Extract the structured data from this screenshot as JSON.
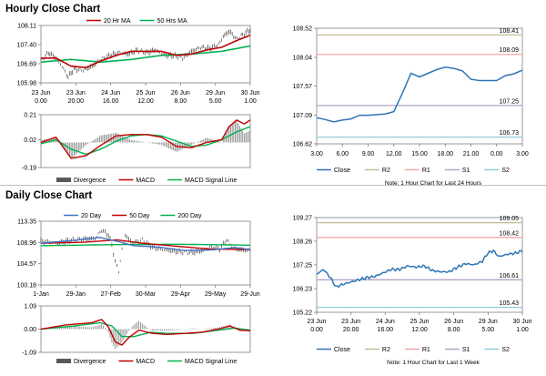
{
  "hourly_title": "Hourly Close Chart",
  "daily_title": "Daily Close Chart",
  "colors": {
    "close": "#2e75b6",
    "ma_short": "#c00000",
    "ma_long": "#00b050",
    "r2": "#c4bd97",
    "r1": "#f4a6a6",
    "s1": "#b3a2c7",
    "s2": "#92cddc",
    "divergence": "#808080",
    "macd_signal": "#00b050",
    "ma_mid": "#4472c4"
  },
  "chart_data": [
    {
      "id": "hourly_price",
      "type": "line",
      "title": "Hourly Close Chart",
      "legend": [
        "20 Hr MA",
        "50 Hrs MA"
      ],
      "legend_placement": "top",
      "ylim": [
        105.98,
        108.11
      ],
      "yticks": [
        "108.11",
        "107.40",
        "106.69",
        "105.98"
      ],
      "ytick_values": [
        108.11,
        107.4,
        106.69,
        105.98
      ],
      "xtick_top": [
        "23 Jun",
        "23 Jun",
        "24 Jun",
        "25 Jun",
        "26 Jun",
        "29 Jun",
        "30 Jun"
      ],
      "xtick_bottom": [
        "0.00",
        "20.00",
        "16.00",
        "12.00",
        "8.00",
        "5.00",
        "1.00"
      ],
      "n_points": 140,
      "close_anchors": [
        [
          0,
          106.8
        ],
        [
          5,
          107.1
        ],
        [
          10,
          106.9
        ],
        [
          14,
          106.6
        ],
        [
          18,
          106.2
        ],
        [
          22,
          106.5
        ],
        [
          28,
          106.45
        ],
        [
          34,
          106.6
        ],
        [
          40,
          106.85
        ],
        [
          46,
          107.0
        ],
        [
          52,
          107.1
        ],
        [
          58,
          107.05
        ],
        [
          64,
          107.2
        ],
        [
          70,
          107.1
        ],
        [
          76,
          107.2
        ],
        [
          82,
          107.0
        ],
        [
          88,
          107.0
        ],
        [
          94,
          106.9
        ],
        [
          100,
          107.15
        ],
        [
          106,
          107.3
        ],
        [
          112,
          107.25
        ],
        [
          118,
          107.4
        ],
        [
          121,
          107.7
        ],
        [
          125,
          107.9
        ],
        [
          130,
          107.6
        ],
        [
          135,
          107.8
        ],
        [
          139,
          107.95
        ]
      ],
      "series": [
        {
          "name": "20 Hr MA",
          "anchors": [
            [
              0,
              106.9
            ],
            [
              10,
              106.9
            ],
            [
              20,
              106.6
            ],
            [
              30,
              106.55
            ],
            [
              40,
              106.8
            ],
            [
              50,
              107.0
            ],
            [
              60,
              107.15
            ],
            [
              70,
              107.15
            ],
            [
              80,
              107.15
            ],
            [
              90,
              107.0
            ],
            [
              100,
              107.05
            ],
            [
              110,
              107.2
            ],
            [
              120,
              107.3
            ],
            [
              130,
              107.55
            ],
            [
              139,
              107.75
            ]
          ]
        },
        {
          "name": "50 Hrs MA",
          "anchors": [
            [
              0,
              106.75
            ],
            [
              20,
              106.85
            ],
            [
              40,
              106.75
            ],
            [
              60,
              106.85
            ],
            [
              80,
              107.0
            ],
            [
              100,
              107.05
            ],
            [
              120,
              107.15
            ],
            [
              139,
              107.35
            ]
          ]
        }
      ]
    },
    {
      "id": "hourly_macd",
      "type": "line",
      "legend": [
        "Divergence",
        "MACD",
        "MACD Signal Line"
      ],
      "ylim": [
        -0.19,
        0.21
      ],
      "yticks": [
        "0.21",
        "0.02",
        "-0.19"
      ],
      "ytick_values": [
        0.21,
        0.02,
        -0.19
      ],
      "zero": 0.0,
      "n_points": 140,
      "series": [
        {
          "name": "MACD",
          "anchors": [
            [
              0,
              0.0
            ],
            [
              10,
              0.04
            ],
            [
              20,
              -0.12
            ],
            [
              30,
              -0.1
            ],
            [
              40,
              -0.02
            ],
            [
              50,
              0.05
            ],
            [
              60,
              0.06
            ],
            [
              70,
              0.06
            ],
            [
              80,
              0.04
            ],
            [
              90,
              -0.03
            ],
            [
              100,
              -0.04
            ],
            [
              110,
              0.0
            ],
            [
              120,
              0.02
            ],
            [
              125,
              0.12
            ],
            [
              130,
              0.17
            ],
            [
              135,
              0.14
            ],
            [
              139,
              0.17
            ]
          ]
        },
        {
          "name": "MACD Signal Line",
          "anchors": [
            [
              0,
              -0.01
            ],
            [
              10,
              0.02
            ],
            [
              20,
              -0.05
            ],
            [
              30,
              -0.09
            ],
            [
              40,
              -0.05
            ],
            [
              50,
              0.01
            ],
            [
              60,
              0.05
            ],
            [
              70,
              0.06
            ],
            [
              80,
              0.05
            ],
            [
              90,
              0.01
            ],
            [
              100,
              -0.03
            ],
            [
              110,
              -0.02
            ],
            [
              120,
              0.02
            ],
            [
              130,
              0.08
            ],
            [
              139,
              0.12
            ]
          ]
        }
      ]
    },
    {
      "id": "hourly_right",
      "type": "line",
      "legend": [
        "Close",
        "R2",
        "R1",
        "S1",
        "S2"
      ],
      "note": "Note: 1 Hour Chart for Last 24 Hours",
      "ylim": [
        106.62,
        108.52
      ],
      "yticks": [
        "108.52",
        "108.04",
        "107.57",
        "107.09",
        "106.62"
      ],
      "ytick_values": [
        108.52,
        108.04,
        107.57,
        107.09,
        106.62
      ],
      "xticks": [
        "3.00",
        "6.00",
        "9.00",
        "12.00",
        "15.00",
        "18.00",
        "21.00",
        "0.00",
        "3.00"
      ],
      "x_points": 25,
      "close": [
        107.05,
        107.02,
        106.98,
        107.01,
        107.03,
        107.09,
        107.09,
        107.1,
        107.11,
        107.15,
        107.45,
        107.78,
        107.72,
        107.78,
        107.84,
        107.88,
        107.86,
        107.82,
        107.68,
        107.66,
        107.66,
        107.66,
        107.74,
        107.77,
        107.83
      ],
      "levels": [
        {
          "name": "R2",
          "value": 108.41,
          "label": "108.41"
        },
        {
          "name": "R1",
          "value": 108.09,
          "label": "108.09"
        },
        {
          "name": "S1",
          "value": 107.25,
          "label": "107.25"
        },
        {
          "name": "S2",
          "value": 106.73,
          "label": "106.73"
        }
      ]
    },
    {
      "id": "daily_price",
      "type": "line",
      "title": "Daily Close Chart",
      "legend": [
        "20 Day",
        "50 Day",
        "200 Day"
      ],
      "legend_placement": "top",
      "ylim": [
        100.18,
        113.35
      ],
      "yticks": [
        "113.35",
        "108.96",
        "104.57",
        "100.18"
      ],
      "ytick_values": [
        113.35,
        108.96,
        104.57,
        100.18
      ],
      "xticks": [
        "1-Jan",
        "29-Jan",
        "27-Feb",
        "30-Mar",
        "29-Apr",
        "29-May",
        "29-Jun"
      ],
      "n_points": 125,
      "close_anchors": [
        [
          0,
          109.2
        ],
        [
          10,
          108.9
        ],
        [
          18,
          109.5
        ],
        [
          26,
          109.7
        ],
        [
          32,
          109.8
        ],
        [
          36,
          111.5
        ],
        [
          40,
          110.5
        ],
        [
          42,
          108.5
        ],
        [
          44,
          105.0
        ],
        [
          46,
          103.0
        ],
        [
          48,
          107.5
        ],
        [
          50,
          110.5
        ],
        [
          54,
          108.8
        ],
        [
          60,
          109.5
        ],
        [
          66,
          108.0
        ],
        [
          72,
          107.5
        ],
        [
          78,
          107.2
        ],
        [
          84,
          107.0
        ],
        [
          90,
          106.9
        ],
        [
          96,
          107.3
        ],
        [
          100,
          108.0
        ],
        [
          106,
          107.7
        ],
        [
          110,
          109.5
        ],
        [
          114,
          107.7
        ],
        [
          120,
          107.4
        ],
        [
          124,
          107.3
        ]
      ],
      "series": [
        {
          "name": "20 Day",
          "anchors": [
            [
              0,
              108.8
            ],
            [
              20,
              109.4
            ],
            [
              35,
              110.0
            ],
            [
              45,
              109.2
            ],
            [
              55,
              108.3
            ],
            [
              70,
              108.0
            ],
            [
              85,
              107.3
            ],
            [
              100,
              107.4
            ],
            [
              115,
              107.9
            ],
            [
              124,
              107.5
            ]
          ]
        },
        {
          "name": "50 Day",
          "anchors": [
            [
              0,
              108.8
            ],
            [
              25,
              109.0
            ],
            [
              45,
              109.5
            ],
            [
              60,
              108.8
            ],
            [
              80,
              108.2
            ],
            [
              100,
              107.6
            ],
            [
              124,
              107.5
            ]
          ]
        },
        {
          "name": "200 Day",
          "anchors": [
            [
              0,
              108.3
            ],
            [
              40,
              108.5
            ],
            [
              80,
              108.6
            ],
            [
              124,
              108.4
            ]
          ]
        }
      ]
    },
    {
      "id": "daily_macd",
      "type": "line",
      "legend": [
        "Divergence",
        "MACD",
        "MACD Signal Line"
      ],
      "ylim": [
        -1.09,
        1.09
      ],
      "yticks": [
        "1.09",
        "0.00",
        "-1.09"
      ],
      "ytick_values": [
        1.09,
        0.0,
        -1.09
      ],
      "zero": 0.0,
      "n_points": 125,
      "series": [
        {
          "name": "MACD",
          "anchors": [
            [
              0,
              0.0
            ],
            [
              15,
              0.2
            ],
            [
              30,
              0.3
            ],
            [
              36,
              0.45
            ],
            [
              40,
              0.1
            ],
            [
              44,
              -0.6
            ],
            [
              48,
              -0.75
            ],
            [
              52,
              -0.4
            ],
            [
              58,
              -0.05
            ],
            [
              66,
              -0.2
            ],
            [
              75,
              -0.25
            ],
            [
              85,
              -0.2
            ],
            [
              95,
              -0.15
            ],
            [
              105,
              0.0
            ],
            [
              112,
              0.15
            ],
            [
              118,
              -0.05
            ],
            [
              124,
              -0.08
            ]
          ]
        },
        {
          "name": "MACD Signal Line",
          "anchors": [
            [
              0,
              0.0
            ],
            [
              20,
              0.15
            ],
            [
              35,
              0.3
            ],
            [
              42,
              0.15
            ],
            [
              48,
              -0.35
            ],
            [
              55,
              -0.35
            ],
            [
              65,
              -0.15
            ],
            [
              75,
              -0.2
            ],
            [
              90,
              -0.2
            ],
            [
              105,
              -0.05
            ],
            [
              115,
              0.05
            ],
            [
              124,
              -0.05
            ]
          ]
        }
      ]
    },
    {
      "id": "daily_right",
      "type": "line",
      "legend": [
        "Close",
        "R2",
        "R1",
        "S1",
        "S2"
      ],
      "note": "Note: 1 Hour Chart for Last 1 Week",
      "ylim": [
        105.22,
        109.27
      ],
      "yticks": [
        "109.27",
        "108.26",
        "107.25",
        "106.23",
        "105.22"
      ],
      "ytick_values": [
        109.27,
        108.26,
        107.25,
        106.23,
        105.22
      ],
      "xtick_top": [
        "23 Jun",
        "23 Jun",
        "24 Jun",
        "25 Jun",
        "26 Jun",
        "29 Jun",
        "30 Jun"
      ],
      "xtick_bottom": [
        "0.00",
        "20.00",
        "16.00",
        "12.00",
        "8.00",
        "5.00",
        "1.00"
      ],
      "n_points": 150,
      "close_anchors": [
        [
          0,
          106.85
        ],
        [
          5,
          107.05
        ],
        [
          10,
          106.7
        ],
        [
          14,
          106.3
        ],
        [
          18,
          106.4
        ],
        [
          24,
          106.5
        ],
        [
          30,
          106.6
        ],
        [
          36,
          106.7
        ],
        [
          42,
          106.75
        ],
        [
          48,
          106.9
        ],
        [
          54,
          107.05
        ],
        [
          60,
          107.05
        ],
        [
          66,
          107.2
        ],
        [
          72,
          107.15
        ],
        [
          78,
          107.2
        ],
        [
          84,
          107.0
        ],
        [
          90,
          106.95
        ],
        [
          96,
          106.95
        ],
        [
          102,
          107.15
        ],
        [
          108,
          107.3
        ],
        [
          114,
          107.25
        ],
        [
          120,
          107.4
        ],
        [
          124,
          107.75
        ],
        [
          128,
          107.85
        ],
        [
          132,
          107.6
        ],
        [
          138,
          107.7
        ],
        [
          144,
          107.75
        ],
        [
          149,
          107.85
        ]
      ],
      "levels": [
        {
          "name": "R2",
          "value": 109.05,
          "label": "109.05"
        },
        {
          "name": "R1",
          "value": 108.42,
          "label": "108.42"
        },
        {
          "name": "S1",
          "value": 106.61,
          "label": "106.61"
        },
        {
          "name": "S2",
          "value": 105.43,
          "label": "105.43"
        }
      ]
    }
  ]
}
